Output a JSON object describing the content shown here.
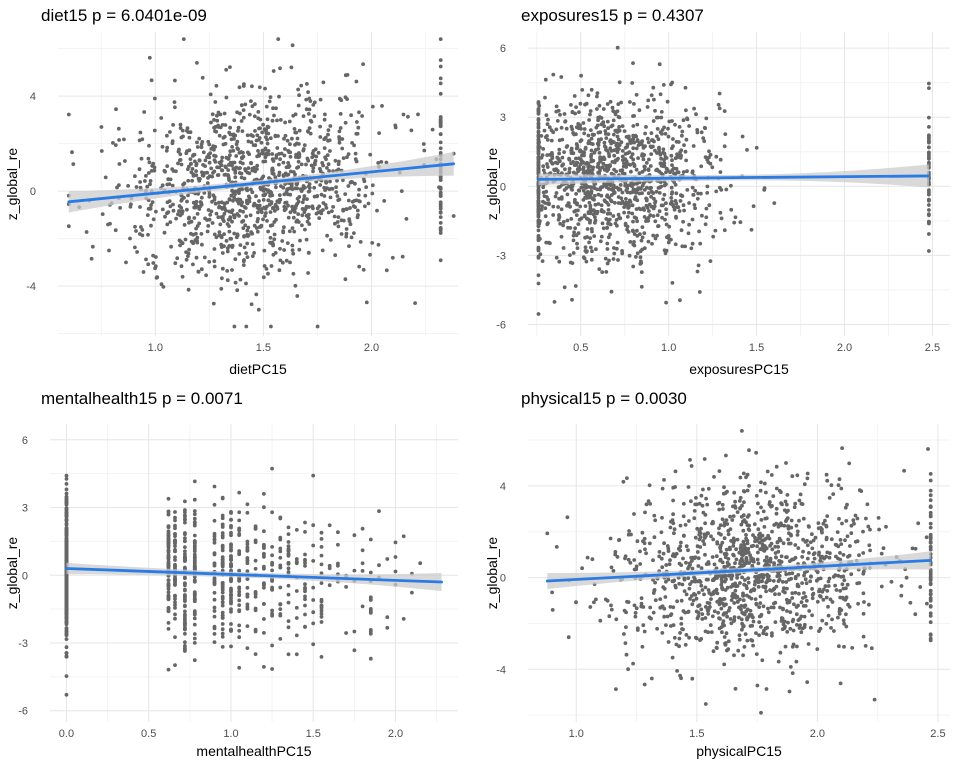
{
  "chart_data": [
    {
      "type": "scatter",
      "title": "diet15 p = 6.0401e-09",
      "xlabel": "dietPC15",
      "ylabel": "z_global_re",
      "xlim": [
        0.55,
        2.4
      ],
      "ylim": [
        -6.1,
        6.7
      ],
      "xticks": [
        1.0,
        1.5,
        2.0
      ],
      "xtick_labels": [
        "1.0",
        "1.5",
        "2.0"
      ],
      "yticks": [
        -4,
        0,
        4
      ],
      "ytick_labels": [
        "-4",
        "0",
        "4"
      ],
      "grid": true,
      "legend": "none",
      "n_points": 1300,
      "x_distribution": {
        "center": 1.45,
        "sd": 0.3
      },
      "y_spread_sd": 1.9,
      "fit": {
        "x": [
          0.6,
          2.38
        ],
        "y": [
          -0.45,
          1.15
        ],
        "ci_halfwidth": [
          0.45,
          0.5
        ]
      },
      "point_color": "#666666",
      "fit_color": "#2a7be4",
      "ci_color": "#cccccc"
    },
    {
      "type": "scatter",
      "title": "exposures15 p = 0.4307",
      "xlabel": "exposuresPC15",
      "ylabel": "z_global_re",
      "xlim": [
        0.2,
        2.6
      ],
      "ylim": [
        -6.5,
        6.7
      ],
      "xticks": [
        0.5,
        1.0,
        1.5,
        2.0,
        2.5
      ],
      "xtick_labels": [
        "0.5",
        "1.0",
        "1.5",
        "2.0",
        "2.5"
      ],
      "yticks": [
        -6,
        -3,
        0,
        3,
        6
      ],
      "ytick_labels": [
        "-6",
        "-3",
        "0",
        "3",
        "6"
      ],
      "grid": true,
      "legend": "none",
      "n_points": 1300,
      "x_distribution": {
        "center": 0.65,
        "sd": 0.32
      },
      "y_spread_sd": 1.75,
      "fit": {
        "x": [
          0.26,
          2.48
        ],
        "y": [
          0.3,
          0.45
        ],
        "ci_halfwidth": [
          0.25,
          0.5
        ]
      },
      "point_color": "#666666",
      "fit_color": "#2a7be4",
      "ci_color": "#cccccc"
    },
    {
      "type": "scatter",
      "title": "mentalhealth15 p = 0.0071",
      "xlabel": "mentalhealthPC15",
      "ylabel": "z_global_re",
      "xlim": [
        -0.1,
        2.38
      ],
      "ylim": [
        -6.5,
        6.7
      ],
      "xticks": [
        0.0,
        0.5,
        1.0,
        1.5,
        2.0
      ],
      "xtick_labels": [
        "0.0",
        "0.5",
        "1.0",
        "1.5",
        "2.0"
      ],
      "yticks": [
        -6,
        -3,
        0,
        3,
        6
      ],
      "ytick_labels": [
        "-6",
        "-3",
        "0",
        "3",
        "6"
      ],
      "grid": true,
      "legend": "none",
      "n_points": 1000,
      "x_columns": [
        0.0,
        0.62,
        0.66,
        0.72,
        0.78
      ],
      "y_spread_sd": 1.55,
      "fit": {
        "x": [
          0.0,
          2.28
        ],
        "y": [
          0.3,
          -0.3
        ],
        "ci_halfwidth": [
          0.25,
          0.4
        ]
      },
      "point_color": "#666666",
      "fit_color": "#2a7be4",
      "ci_color": "#cccccc"
    },
    {
      "type": "scatter",
      "title": "physical15 p = 0.0030",
      "xlabel": "physicalPC15",
      "ylabel": "z_global_re",
      "xlim": [
        0.8,
        2.55
      ],
      "ylim": [
        -6.3,
        6.7
      ],
      "xticks": [
        1.0,
        1.5,
        2.0,
        2.5
      ],
      "xtick_labels": [
        "1.0",
        "1.5",
        "2.0",
        "2.5"
      ],
      "yticks": [
        -4,
        0,
        4
      ],
      "ytick_labels": [
        "-4",
        "0",
        "4"
      ],
      "grid": true,
      "legend": "none",
      "n_points": 1300,
      "x_distribution": {
        "center": 1.72,
        "sd": 0.27
      },
      "y_spread_sd": 1.85,
      "fit": {
        "x": [
          0.88,
          2.47
        ],
        "y": [
          -0.15,
          0.75
        ],
        "ci_halfwidth": [
          0.35,
          0.4
        ]
      },
      "point_color": "#666666",
      "fit_color": "#2a7be4",
      "ci_color": "#cccccc"
    }
  ]
}
